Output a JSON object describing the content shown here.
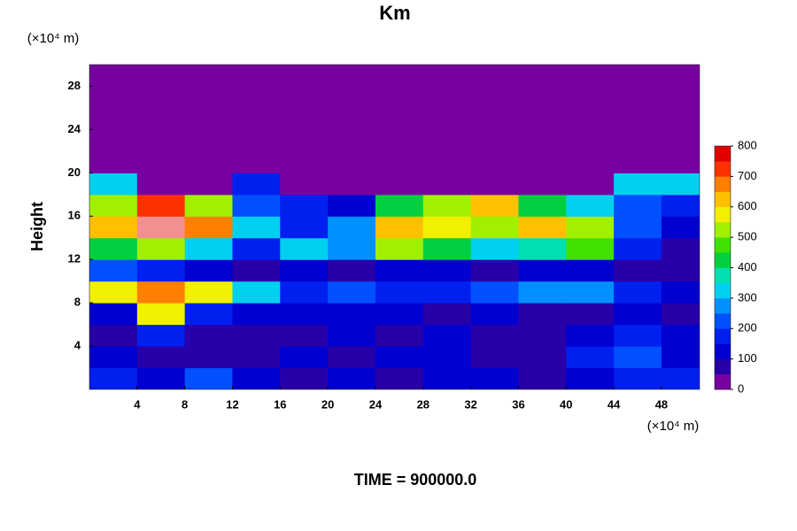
{
  "chart_data": {
    "type": "contour",
    "title": "Km",
    "y_unit_label": "(×10⁴ m)",
    "x_unit_label": "(×10⁴ m)",
    "ylabel": "Height",
    "footer": "TIME = 900000.0",
    "xlim": [
      0,
      51.2
    ],
    "ylim": [
      0,
      30
    ],
    "xticks": [
      4,
      8,
      12,
      16,
      20,
      24,
      28,
      32,
      36,
      40,
      44,
      48
    ],
    "yticks": [
      4,
      8,
      12,
      16,
      20,
      24,
      28
    ],
    "x": [
      2,
      6,
      10,
      14,
      18,
      22,
      26,
      30,
      34,
      38,
      42,
      46,
      50
    ],
    "y": [
      1,
      3,
      5,
      7,
      9,
      11,
      13,
      15,
      17,
      19,
      21,
      23,
      25,
      27,
      29
    ],
    "z": [
      [
        150,
        100,
        200,
        100,
        50,
        100,
        50,
        100,
        100,
        50,
        100,
        150,
        150
      ],
      [
        100,
        50,
        50,
        50,
        100,
        50,
        100,
        100,
        50,
        50,
        150,
        200,
        100
      ],
      [
        50,
        150,
        50,
        50,
        50,
        100,
        50,
        100,
        50,
        50,
        100,
        150,
        100
      ],
      [
        100,
        550,
        150,
        100,
        100,
        100,
        100,
        50,
        100,
        50,
        50,
        100,
        50
      ],
      [
        550,
        650,
        550,
        300,
        150,
        200,
        150,
        150,
        200,
        250,
        250,
        150,
        100
      ],
      [
        200,
        150,
        100,
        50,
        100,
        50,
        100,
        100,
        50,
        100,
        100,
        50,
        50
      ],
      [
        400,
        500,
        300,
        150,
        300,
        250,
        500,
        400,
        300,
        350,
        450,
        150,
        50
      ],
      [
        600,
        800,
        650,
        300,
        150,
        250,
        600,
        550,
        500,
        600,
        500,
        200,
        100
      ],
      [
        500,
        700,
        500,
        200,
        150,
        100,
        400,
        500,
        600,
        400,
        300,
        200,
        150
      ],
      [
        300,
        0,
        0,
        150,
        0,
        0,
        0,
        0,
        0,
        0,
        0,
        300,
        300
      ],
      [
        0,
        0,
        0,
        0,
        0,
        0,
        0,
        0,
        0,
        0,
        0,
        0,
        0
      ],
      [
        0,
        0,
        0,
        0,
        0,
        0,
        0,
        0,
        0,
        0,
        0,
        0,
        0
      ],
      [
        0,
        0,
        0,
        0,
        0,
        0,
        0,
        0,
        0,
        0,
        0,
        0,
        0
      ],
      [
        0,
        0,
        0,
        0,
        0,
        0,
        0,
        0,
        0,
        0,
        0,
        0,
        0
      ],
      [
        0,
        0,
        0,
        0,
        0,
        0,
        0,
        0,
        0,
        0,
        0,
        0,
        0
      ]
    ],
    "colorbar": {
      "levels": [
        0,
        50,
        100,
        150,
        200,
        250,
        300,
        350,
        400,
        450,
        500,
        550,
        600,
        650,
        700,
        750,
        800
      ],
      "colors": [
        "#7800a0",
        "#2800a8",
        "#0000d0",
        "#0020f0",
        "#0050ff",
        "#0090ff",
        "#00d0f0",
        "#00e0b0",
        "#00d040",
        "#40e000",
        "#a0f000",
        "#f0f000",
        "#ffc000",
        "#ff8000",
        "#ff3000",
        "#e00000",
        "#f09090"
      ],
      "ticks": [
        0,
        100,
        200,
        300,
        400,
        500,
        600,
        700,
        800
      ]
    }
  }
}
